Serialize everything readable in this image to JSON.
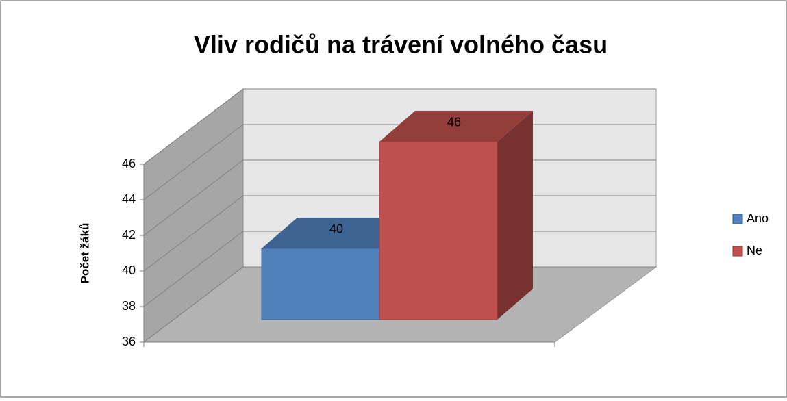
{
  "chart_data": {
    "type": "bar3d",
    "title": "Vliv rodičů na trávení volného času",
    "y_label": "Počet žáků",
    "series": [
      {
        "name": "Ano",
        "color": "#4f81bd",
        "values": [
          40
        ]
      },
      {
        "name": "Ne",
        "color": "#c0504d",
        "values": [
          46
        ]
      }
    ],
    "ylim": [
      36,
      46
    ],
    "yticks": [
      36,
      38,
      40,
      42,
      44,
      46
    ],
    "grid": true,
    "legend": "right"
  }
}
